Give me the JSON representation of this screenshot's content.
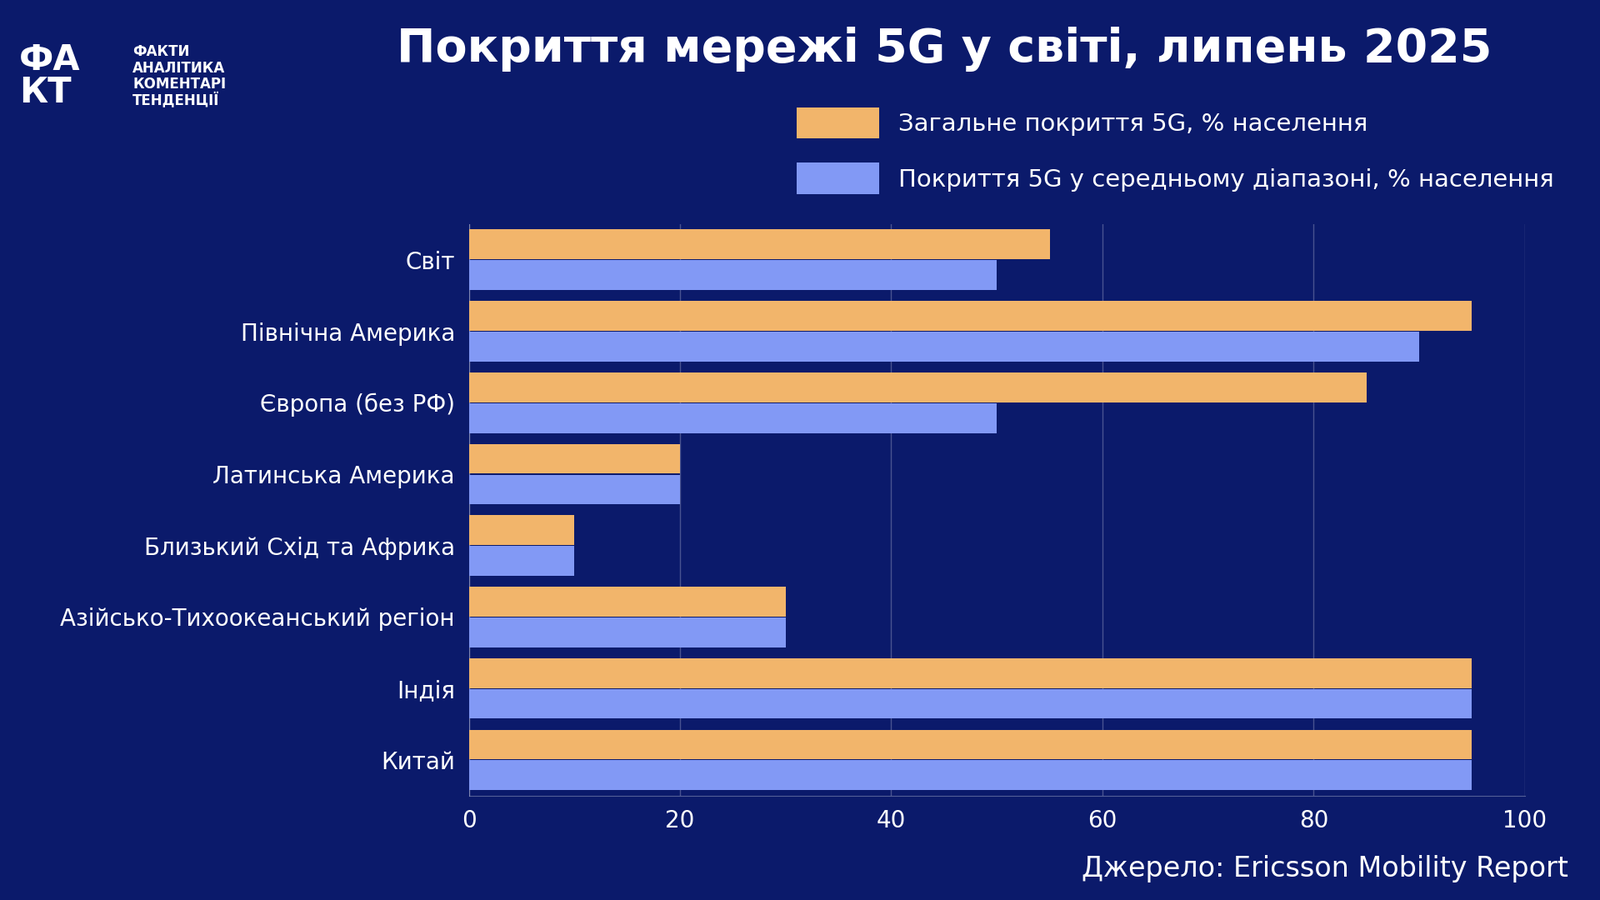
{
  "chart_data": {
    "type": "bar",
    "orientation": "horizontal",
    "title": "Покриття мережі 5G у світі, липень 2025",
    "categories": [
      "Світ",
      "Північна Америка",
      "Європа (без РФ)",
      "Латинська Америка",
      "Близький Схід та Африка",
      "Азійсько-Тихоокеанський регіон",
      "Індія",
      "Китай"
    ],
    "series": [
      {
        "name": "Загальне покриття 5G, % населення",
        "color": "#f2b56b",
        "values": [
          55,
          95,
          85,
          20,
          10,
          30,
          95,
          95
        ]
      },
      {
        "name": "Покриття 5G у середньому діапазоні, % населення",
        "color": "#8299f5",
        "values": [
          50,
          90,
          50,
          20,
          10,
          30,
          95,
          95
        ]
      }
    ],
    "xlim": [
      0,
      100
    ],
    "xticks": [
      0,
      20,
      40,
      60,
      80,
      100
    ],
    "grid": true,
    "legend": "upper right",
    "source": "Джерело: Ericsson Mobility Report",
    "logo": "ФАКТ",
    "logo_lines": [
      "ФАКТИ",
      "АНАЛІТИКА",
      "КОМЕНТАРІ",
      "ТЕНДЕНЦІЇ"
    ]
  }
}
